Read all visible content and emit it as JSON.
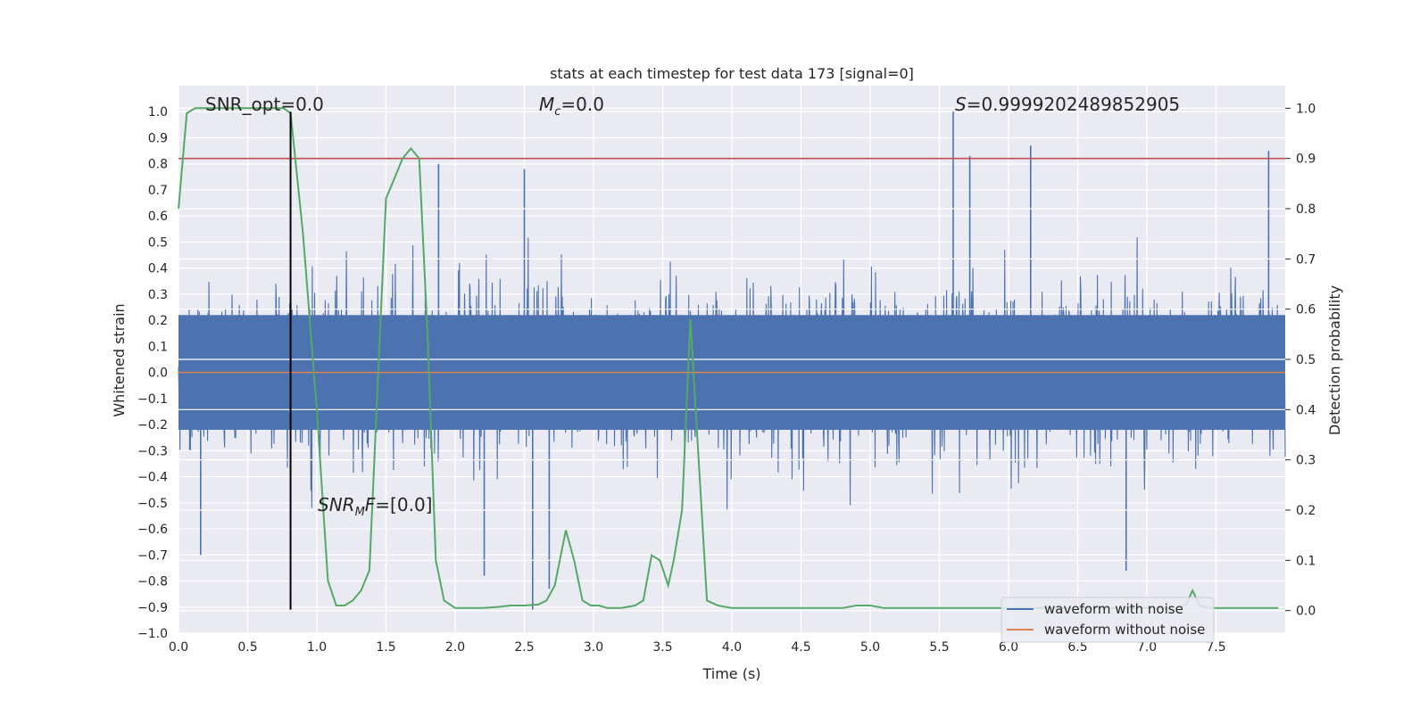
{
  "chart_data": {
    "type": "line",
    "title": "stats at each timestep for test data 173 [signal=0]",
    "xlabel": "Time (s)",
    "ylabel": "Whitened strain",
    "y2label": "Detection probability",
    "xlim": [
      0.0,
      8.0
    ],
    "ylim": [
      -1.0,
      1.1
    ],
    "y2lim": [
      -0.045,
      1.045
    ],
    "xticks": [
      0.0,
      0.5,
      1.0,
      1.5,
      2.0,
      2.5,
      3.0,
      3.5,
      4.0,
      4.5,
      5.0,
      5.5,
      6.0,
      6.5,
      7.0,
      7.5
    ],
    "xtick_labels": [
      "0.0",
      "0.5",
      "1.0",
      "1.5",
      "2.0",
      "2.5",
      "3.0",
      "3.5",
      "4.0",
      "4.5",
      "5.0",
      "5.5",
      "6.0",
      "6.5",
      "7.0",
      "7.5"
    ],
    "yticks": [
      -1.0,
      -0.9,
      -0.8,
      -0.7,
      -0.6,
      -0.5,
      -0.4,
      -0.3,
      -0.2,
      -0.1,
      0.0,
      0.1,
      0.2,
      0.3,
      0.4,
      0.5,
      0.6,
      0.7,
      0.8,
      0.9,
      1.0
    ],
    "ytick_labels": [
      "−1.0",
      "−0.9",
      "−0.8",
      "−0.7",
      "−0.6",
      "−0.5",
      "−0.4",
      "−0.3",
      "−0.2",
      "−0.1",
      "0.0",
      "0.1",
      "0.2",
      "0.3",
      "0.4",
      "0.5",
      "0.6",
      "0.7",
      "0.8",
      "0.9",
      "1.0"
    ],
    "y2ticks": [
      0.0,
      0.1,
      0.2,
      0.3,
      0.4,
      0.5,
      0.6,
      0.7,
      0.8,
      0.9,
      1.0
    ],
    "y2tick_labels": [
      "0.0",
      "0.1",
      "0.2",
      "0.3",
      "0.4",
      "0.5",
      "0.6",
      "0.7",
      "0.8",
      "0.9",
      "1.0"
    ],
    "grid": true,
    "background": "#eaeaf2",
    "annotations": {
      "snr_opt": "SNR_opt=0.0",
      "mc": "=0.0",
      "mc_symbol": "M",
      "mc_sub": "c",
      "s": "=0.9999202489852905",
      "s_symbol": "S",
      "snr_mf": "=[0.0]",
      "snr_mf_symbol": "SNR",
      "snr_mf_sub": "M",
      "snr_mf_tail": "F"
    },
    "threshold_y2": 0.9,
    "vertical_marker_x": 0.81,
    "vertical_marker_ylim": [
      -0.91,
      1.0
    ],
    "series": [
      {
        "name": "waveform with noise",
        "color": "#4c72b0",
        "axis": "left",
        "style": "dense-noise",
        "approx_envelope": [
          -0.45,
          0.45
        ],
        "notable_peaks": [
          {
            "x": 5.6,
            "y": 1.0
          },
          {
            "x": 6.16,
            "y": 0.87
          },
          {
            "x": 5.72,
            "y": 0.83
          },
          {
            "x": 7.88,
            "y": 0.85
          },
          {
            "x": 1.88,
            "y": 0.8
          },
          {
            "x": 2.5,
            "y": 0.78
          },
          {
            "x": 2.56,
            "y": -0.91
          },
          {
            "x": 2.68,
            "y": -0.83
          },
          {
            "x": 6.85,
            "y": -0.76
          },
          {
            "x": 2.21,
            "y": -0.78
          },
          {
            "x": 0.16,
            "y": -0.7
          }
        ]
      },
      {
        "name": "waveform without noise",
        "color": "#dd8452",
        "axis": "left",
        "x": [
          0.0,
          8.0
        ],
        "y": [
          0.0,
          0.0
        ]
      },
      {
        "name": "",
        "color": "#55a868",
        "axis": "right",
        "x": [
          0.0,
          0.06,
          0.12,
          0.2,
          0.3,
          0.4,
          0.5,
          0.6,
          0.7,
          0.76,
          0.81,
          0.9,
          1.0,
          1.08,
          1.14,
          1.2,
          1.26,
          1.32,
          1.38,
          1.44,
          1.5,
          1.56,
          1.62,
          1.68,
          1.74,
          1.8,
          1.86,
          1.92,
          2.0,
          2.1,
          2.2,
          2.3,
          2.4,
          2.5,
          2.6,
          2.66,
          2.72,
          2.8,
          2.86,
          2.92,
          2.98,
          3.04,
          3.1,
          3.2,
          3.3,
          3.36,
          3.42,
          3.48,
          3.54,
          3.58,
          3.64,
          3.7,
          3.76,
          3.82,
          3.9,
          4.0,
          4.2,
          4.4,
          4.5,
          4.6,
          4.8,
          4.9,
          5.0,
          5.1,
          5.2,
          5.4,
          5.6,
          5.8,
          6.0,
          6.2,
          6.4,
          6.6,
          6.8,
          7.0,
          7.2,
          7.28,
          7.33,
          7.38,
          7.45,
          7.6,
          7.8,
          7.95
        ],
        "y": [
          0.8,
          0.99,
          1.0,
          1.0,
          1.0,
          1.0,
          1.0,
          1.0,
          1.0,
          1.0,
          0.99,
          0.75,
          0.4,
          0.06,
          0.01,
          0.01,
          0.02,
          0.04,
          0.08,
          0.45,
          0.82,
          0.86,
          0.9,
          0.92,
          0.9,
          0.55,
          0.1,
          0.02,
          0.005,
          0.005,
          0.005,
          0.007,
          0.01,
          0.01,
          0.012,
          0.02,
          0.05,
          0.16,
          0.1,
          0.02,
          0.01,
          0.01,
          0.005,
          0.005,
          0.01,
          0.02,
          0.11,
          0.1,
          0.05,
          0.1,
          0.2,
          0.58,
          0.3,
          0.02,
          0.01,
          0.005,
          0.005,
          0.005,
          0.005,
          0.005,
          0.005,
          0.01,
          0.01,
          0.005,
          0.005,
          0.005,
          0.005,
          0.005,
          0.005,
          0.005,
          0.005,
          0.005,
          0.005,
          0.005,
          0.005,
          0.01,
          0.04,
          0.01,
          0.005,
          0.005,
          0.005,
          0.005
        ]
      }
    ],
    "legend": {
      "placement": "lower-right",
      "entries": [
        "waveform with noise",
        "waveform without noise"
      ]
    }
  }
}
